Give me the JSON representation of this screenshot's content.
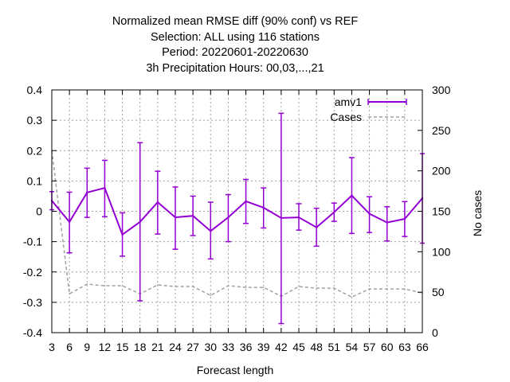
{
  "chart_data": {
    "type": "line",
    "title_lines": [
      "Normalized mean RMSE diff (90% conf) vs REF",
      "Selection: ALL using   116 stations",
      "Period: 20220601-20220630",
      "3h Precipitation   Hours:  00,03,...,21"
    ],
    "xlabel": "Forecast length",
    "ylabel": "",
    "y2label": "No cases",
    "x_ticks": [
      3,
      6,
      9,
      12,
      15,
      18,
      21,
      24,
      27,
      30,
      33,
      36,
      39,
      42,
      45,
      48,
      51,
      54,
      57,
      60,
      63,
      66
    ],
    "x_tick_labels": [
      "3",
      "6",
      "9",
      "12",
      "15",
      "18",
      "21",
      "24",
      "27",
      "30",
      "33",
      "36",
      "39",
      "42",
      "45",
      "48",
      "51",
      "54",
      "57",
      "60",
      "63",
      "66"
    ],
    "xlim": [
      3,
      66
    ],
    "y_ticks": [
      -0.4,
      -0.3,
      -0.2,
      -0.1,
      0,
      0.1,
      0.2,
      0.3,
      0.4
    ],
    "y_tick_labels": [
      "-0.4",
      "-0.3",
      "-0.2",
      "-0.1",
      "0",
      "0.1",
      "0.2",
      "0.3",
      "0.4"
    ],
    "ylim": [
      -0.4,
      0.4
    ],
    "y2_ticks": [
      0,
      50,
      100,
      150,
      200,
      250,
      300
    ],
    "y2_tick_labels": [
      "0",
      "50",
      "100",
      "150",
      "200",
      "250",
      "300"
    ],
    "y2lim": [
      0,
      300
    ],
    "grid": true,
    "legend_position": "top-right",
    "series": [
      {
        "name": "amv1",
        "axis": "y",
        "color": "#9400d3",
        "x": [
          3,
          6,
          9,
          12,
          15,
          18,
          21,
          24,
          27,
          30,
          33,
          36,
          39,
          42,
          45,
          48,
          51,
          54,
          57,
          60,
          63,
          66
        ],
        "y": [
          0.035,
          -0.035,
          0.062,
          0.077,
          -0.077,
          -0.035,
          0.03,
          -0.02,
          -0.015,
          -0.065,
          -0.02,
          0.033,
          0.012,
          -0.022,
          -0.02,
          -0.053,
          -0.003,
          0.052,
          -0.008,
          -0.037,
          -0.025,
          0.043
        ],
        "y_low": [
          0.005,
          -0.137,
          -0.02,
          -0.018,
          -0.148,
          -0.295,
          -0.075,
          -0.125,
          -0.08,
          -0.157,
          -0.1,
          -0.04,
          -0.055,
          -0.37,
          -0.062,
          -0.115,
          -0.033,
          -0.073,
          -0.07,
          -0.098,
          -0.083,
          -0.105
        ],
        "y_high": [
          0.065,
          0.063,
          0.142,
          0.168,
          -0.005,
          0.226,
          0.132,
          0.08,
          0.05,
          0.03,
          0.055,
          0.105,
          0.077,
          0.323,
          0.025,
          0.01,
          0.027,
          0.177,
          0.048,
          0.015,
          0.032,
          0.19
        ]
      },
      {
        "name": "Cases",
        "axis": "y2",
        "color": "#a0a0a0",
        "x": [
          3,
          6,
          9,
          12,
          15,
          18,
          21,
          24,
          27,
          30,
          33,
          36,
          39,
          42,
          45,
          48,
          51,
          54,
          57,
          60,
          63,
          66
        ],
        "y": [
          225,
          48,
          60,
          58,
          58,
          48,
          59,
          57,
          57,
          46,
          58,
          56,
          56,
          45,
          57,
          55,
          55,
          44,
          54,
          54,
          54,
          49
        ]
      }
    ]
  }
}
